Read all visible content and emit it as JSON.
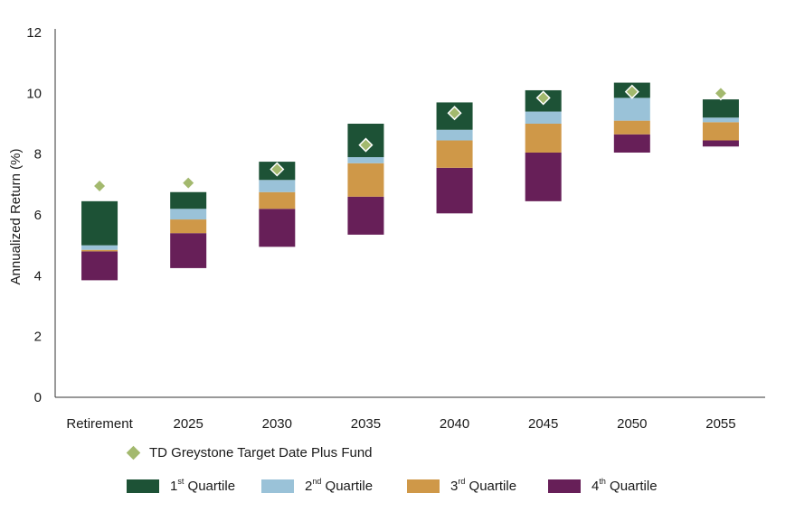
{
  "chart_data": {
    "type": "bar",
    "subtype": "floating-stacked-quartile",
    "ylabel": "Annualized Return (%)",
    "ylim": [
      0,
      12
    ],
    "yticks": [
      "0",
      "2",
      "4",
      "6",
      "8",
      "10",
      "12"
    ],
    "categories": [
      "Retirement",
      "2025",
      "2030",
      "2035",
      "2040",
      "2045",
      "2050",
      "2055"
    ],
    "quartile_bounds": [
      [
        3.85,
        4.8,
        4.85,
        5.0,
        6.45
      ],
      [
        4.25,
        5.4,
        5.85,
        6.2,
        6.75
      ],
      [
        4.95,
        6.2,
        6.75,
        7.15,
        7.75
      ],
      [
        5.35,
        6.6,
        7.7,
        7.9,
        9.0
      ],
      [
        6.05,
        7.55,
        8.45,
        8.8,
        9.7
      ],
      [
        6.45,
        8.05,
        9.0,
        9.4,
        10.1
      ],
      [
        8.05,
        8.65,
        9.1,
        9.85,
        10.35
      ],
      [
        8.25,
        8.45,
        9.05,
        9.2,
        9.8
      ]
    ],
    "fund_values": [
      6.95,
      7.05,
      7.5,
      8.3,
      9.35,
      9.85,
      10.05,
      10.0
    ],
    "series": [
      {
        "name": "1st Quartile",
        "color": "#1d5236"
      },
      {
        "name": "2nd Quartile",
        "color": "#9ac2d8"
      },
      {
        "name": "3rd Quartile",
        "color": "#cf9848"
      },
      {
        "name": "4th Quartile",
        "color": "#671f58"
      }
    ],
    "fund_series": {
      "name": "TD Greystone Target Date Plus Fund",
      "color": "#a3b96e"
    },
    "grid": false
  },
  "legend": {
    "fund": "TD Greystone Target Date Plus Fund",
    "q1": {
      "num": "1",
      "sup": "st",
      "text": " Quartile"
    },
    "q2": {
      "num": "2",
      "sup": "nd",
      "text": " Quartile"
    },
    "q3": {
      "num": "3",
      "sup": "rd",
      "text": " Quartile"
    },
    "q4": {
      "num": "4",
      "sup": "th",
      "text": " Quartile"
    }
  }
}
